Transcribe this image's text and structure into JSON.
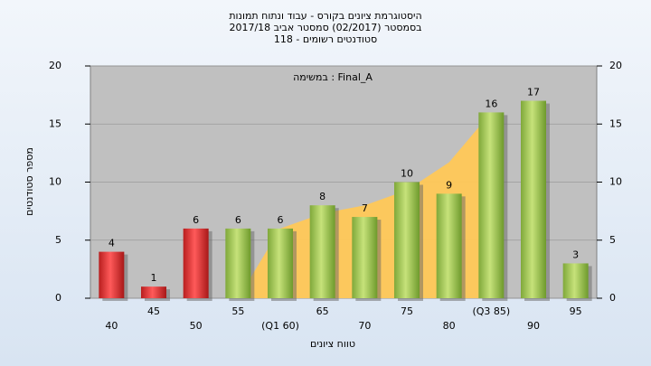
{
  "chart_data": {
    "type": "bar",
    "title": [
      "היסטוגרמת ציונים בקורס - עבוד ונתוח תמונות",
      "בסמסטר  (02/2017)  סמסטר אביב 2017/18",
      "סטודנטים רשומים - 118"
    ],
    "annotation": "במשימה : Final_A",
    "xlabel": "טווח ציונים",
    "ylabel": "מספר סטודנטים",
    "categories": [
      "40",
      "45",
      "50",
      "55",
      "(Q1 60)",
      "65",
      "70",
      "75",
      "80",
      "(Q3 85)",
      "90",
      "95"
    ],
    "values": [
      4,
      1,
      6,
      6,
      6,
      8,
      7,
      10,
      9,
      16,
      17,
      3
    ],
    "colors": [
      "#e02a2a",
      "#e02a2a",
      "#e02a2a",
      "#a6c85a",
      "#a6c85a",
      "#a6c85a",
      "#a6c85a",
      "#a6c85a",
      "#a6c85a",
      "#a6c85a",
      "#a6c85a",
      "#a6c85a"
    ],
    "area": {
      "color": "#ffc857",
      "values": [
        null,
        null,
        null,
        0,
        6,
        7.3,
        8,
        9.3,
        11.7,
        16,
        null,
        null
      ]
    },
    "ylim": [
      0,
      20
    ],
    "yticks": [
      0,
      5,
      10,
      15,
      20
    ],
    "grid": true
  }
}
